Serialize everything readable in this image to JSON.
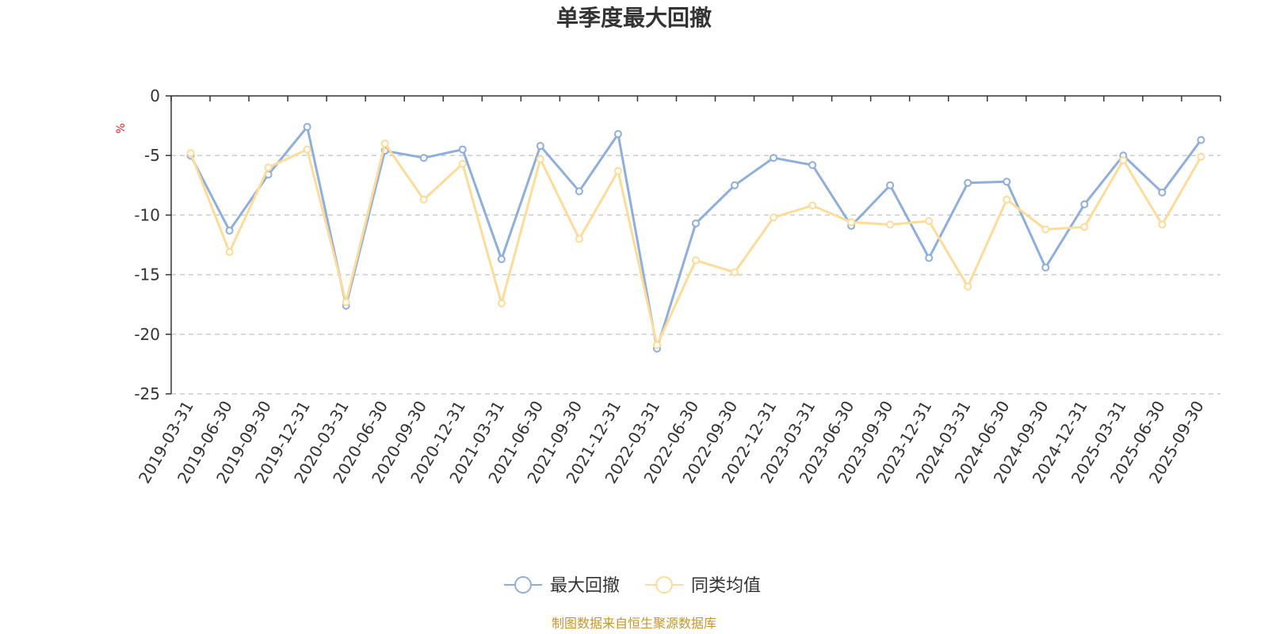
{
  "colors": {
    "series1": "#8eaedb",
    "series2": "#fddc9a",
    "axis": "#333333",
    "grid": "#cccccc",
    "unit": "#e02020",
    "source": "#c8952a"
  },
  "chart_data": {
    "type": "line",
    "title": "单季度最大回撤",
    "ylabel": "%",
    "xlabel": "",
    "ylim": [
      -25,
      0
    ],
    "yticks": [
      0,
      -5,
      -10,
      -15,
      -20,
      -25
    ],
    "ytick_labels": [
      "0",
      "-5",
      "-10",
      "-15",
      "-20",
      "-25"
    ],
    "grid": "horizontal dashed",
    "legend_position": "bottom-center",
    "categories": [
      "2019-03-31",
      "2019-06-30",
      "2019-09-30",
      "2019-12-31",
      "2020-03-31",
      "2020-06-30",
      "2020-09-30",
      "2020-12-31",
      "2021-03-31",
      "2021-06-30",
      "2021-09-30",
      "2021-12-31",
      "2022-03-31",
      "2022-06-30",
      "2022-09-30",
      "2022-12-31",
      "2023-03-31",
      "2023-06-30",
      "2023-09-30",
      "2023-12-31",
      "2024-03-31",
      "2024-06-30",
      "2024-09-30",
      "2024-12-31",
      "2025-03-31",
      "2025-06-30",
      "2025-09-30"
    ],
    "series": [
      {
        "name": "最大回撤",
        "values": [
          -5.0,
          -11.3,
          -6.6,
          -2.6,
          -17.6,
          -4.6,
          -5.2,
          -4.5,
          -13.7,
          -4.2,
          -8.0,
          -3.2,
          -21.2,
          -10.7,
          -7.5,
          -5.2,
          -5.8,
          -10.9,
          -7.5,
          -13.6,
          -7.3,
          -7.2,
          -14.4,
          -9.1,
          -5.0,
          -8.1,
          -3.7
        ]
      },
      {
        "name": "同类均值",
        "values": [
          -4.8,
          -13.1,
          -6.0,
          -4.5,
          -17.3,
          -4.0,
          -8.7,
          -5.7,
          -17.4,
          -5.3,
          -12.0,
          -6.3,
          -20.9,
          -13.8,
          -14.8,
          -10.2,
          -9.2,
          -10.6,
          -10.8,
          -10.5,
          -16.0,
          -8.7,
          -11.2,
          -11.0,
          -5.4,
          -10.8,
          -5.1
        ]
      }
    ]
  },
  "source": "制图数据来自恒生聚源数据库"
}
